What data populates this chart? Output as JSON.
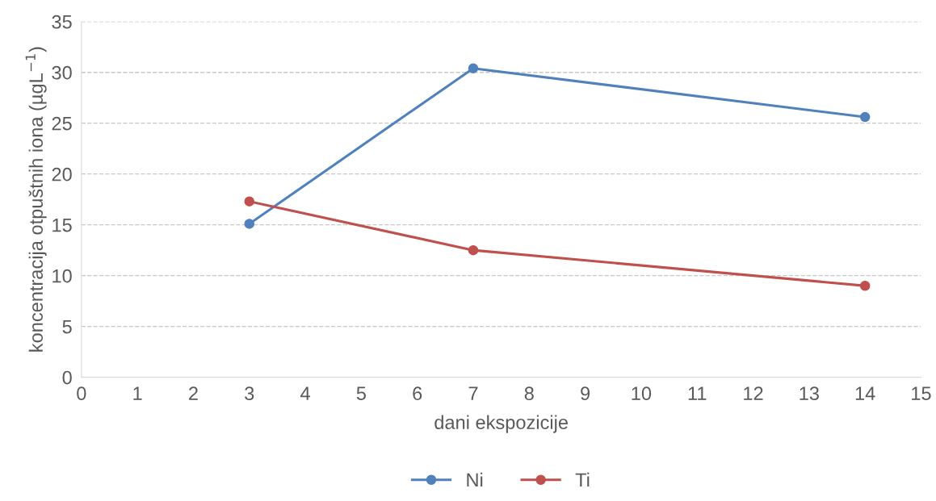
{
  "chart_data": {
    "type": "line",
    "xlabel": "dani ekspozicije",
    "ylabel": "koncentracija otpuštnih iona (µgL$^{−1}$)",
    "x": [
      3,
      7,
      14
    ],
    "series": [
      {
        "name": "Ni",
        "color": "#4f81bd",
        "values": [
          15.1,
          30.4,
          25.6
        ]
      },
      {
        "name": "Ti",
        "color": "#c0504d",
        "values": [
          17.3,
          12.5,
          9.0
        ]
      }
    ],
    "xlim": [
      0,
      15
    ],
    "xticks": [
      0,
      1,
      2,
      3,
      4,
      5,
      6,
      7,
      8,
      9,
      10,
      11,
      12,
      13,
      14,
      15
    ],
    "ylim": [
      0,
      35
    ],
    "yticks": [
      0,
      5,
      10,
      15,
      20,
      25,
      30,
      35
    ],
    "grid": "y",
    "legend": "bottom",
    "marker": "circle",
    "line_style": "solid"
  }
}
